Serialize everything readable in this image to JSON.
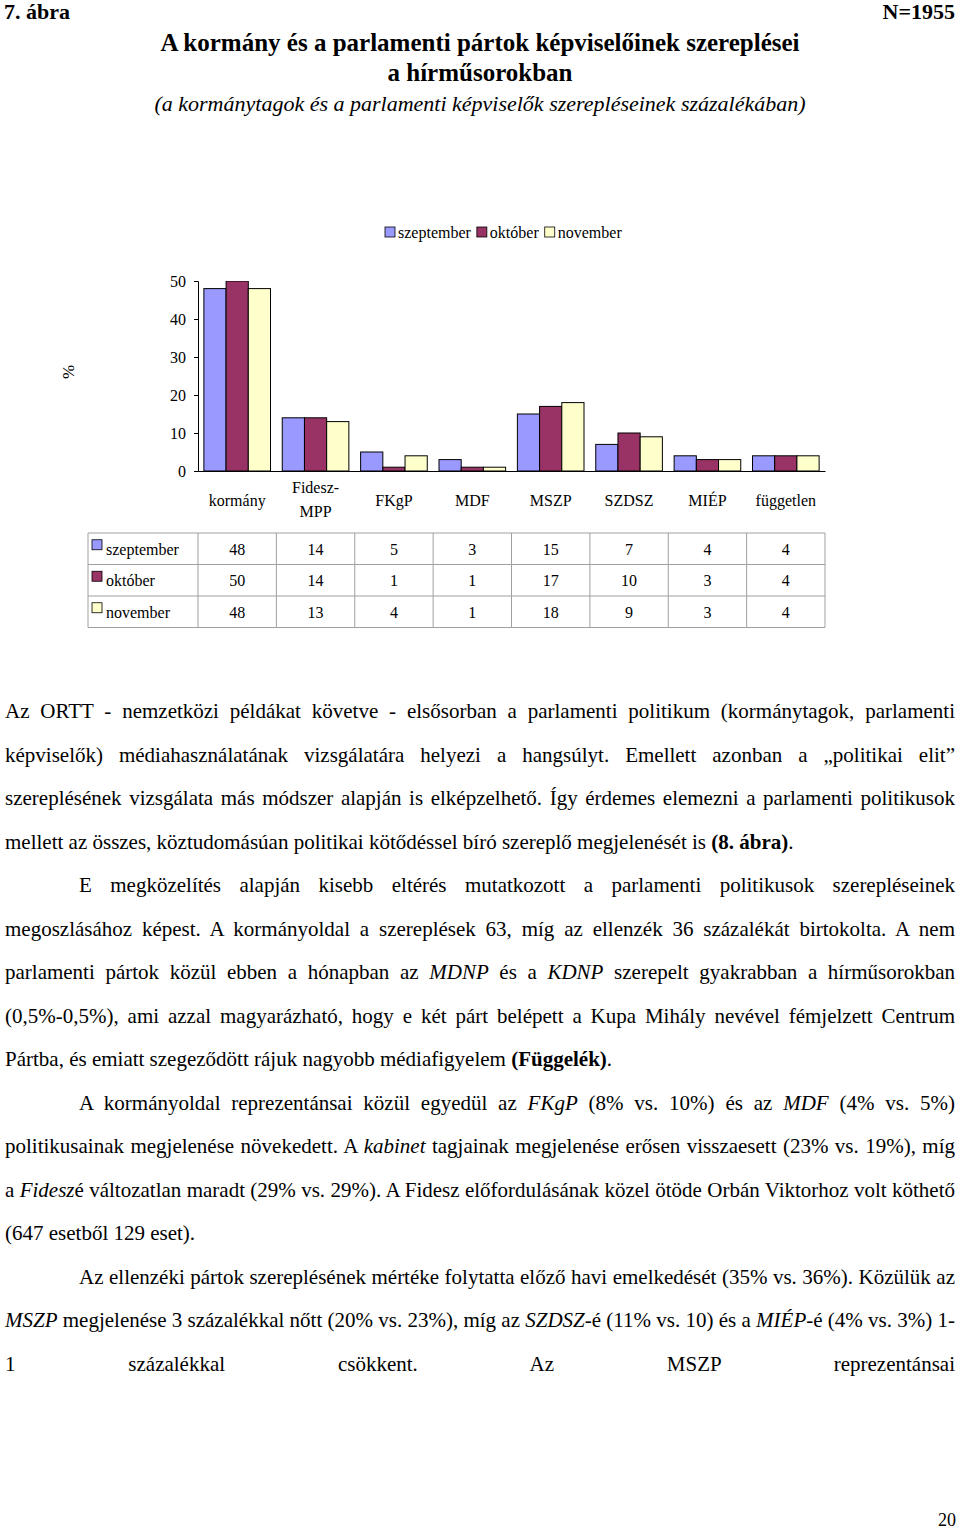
{
  "document": {
    "figure_label": "7. ábra",
    "sample_size": "N=1955",
    "paragraphs": [
      [
        "Az ORTT - nemzetközi példákat követve - elsősorban a parlamenti politikum (kormánytagok, parlamenti képviselők) médiahasználatának vizsgálatára helyezi a hangsúlyt. Emellett azonban a „politikai elit” szereplésének vizsgálata más módszer alapján is elképzelhető. Így érdemes elemezni a parlamenti politikusok mellett az összes, köztudomásúan politikai kötődéssel bíró szereplő megjelenését is ",
        {
          "bold": "(8. ábra)"
        },
        "."
      ],
      [
        "E megközelítés alapján kisebb eltérés mutatkozott a parlamenti politikusok szerepléseinek megoszlásához képest. A kormányoldal a szereplések 63, míg az ellenzék 36 százalékát birtokolta. A nem parlamenti pártok közül ebben a hónapban az ",
        {
          "italic": "MDNP"
        },
        " és a ",
        {
          "italic": "KDNP"
        },
        " szerepelt gyakrabban a hírműsorokban (0,5%-0,5%), ami azzal magyarázható, hogy e két párt belépett a Kupa Mihály nevével fémjelzett Centrum Pártba, és emiatt szegeződött rájuk nagyobb médiafigyelem ",
        {
          "bold": "(Függelék)"
        },
        "."
      ],
      [
        "A kormányoldal reprezentánsai közül egyedül az ",
        {
          "italic": "FKgP"
        },
        " (8% vs. 10%) és az ",
        {
          "italic": "MDF"
        },
        " (4% vs. 5%) politikusainak megjelenése növekedett. A ",
        {
          "italic": "kabinet"
        },
        " tagjainak megjelenése erősen visszaesett (23% vs. 19%), míg a ",
        {
          "italic": "Fidesz"
        },
        "é változatlan maradt (29% vs. 29%). A Fidesz előfordulásának közel ötöde Orbán Viktorhoz volt köthető (647 esetből 129 eset)."
      ],
      [
        "Az ellenzéki pártok szereplésének mértéke folytatta előző havi emelkedését (35% vs. 36%). Közülük az ",
        {
          "italic": "MSZP"
        },
        " megjelenése 3 százalékkal nőtt (20% vs. 23%), míg az ",
        {
          "italic": "SZDSZ"
        },
        "-é (11% vs. 10) és a ",
        {
          "italic": "MIÉP"
        },
        "-é (4% vs. 3%) 1-1 százalékkal csökkent. Az MSZP reprezentánsai"
      ]
    ],
    "page_number": "20"
  },
  "chart_data": {
    "type": "bar",
    "title": "A kormány és a parlamenti pártok képviselőinek szereplései a hírműsorokban",
    "subtitle": "(a kormánytagok és a parlamenti képviselők szerepléseinek százalékában)",
    "ylabel": "%",
    "categories": [
      "kormány",
      "Fidesz-MPP",
      "FKgP",
      "MDF",
      "MSZP",
      "SZDSZ",
      "MIÉP",
      "független"
    ],
    "series": [
      {
        "name": "szeptember",
        "color": "#9999ff",
        "values": [
          48,
          14,
          5,
          3,
          15,
          7,
          4,
          4
        ]
      },
      {
        "name": "október",
        "color": "#993366",
        "values": [
          50,
          14,
          1,
          1,
          17,
          10,
          3,
          4
        ]
      },
      {
        "name": "november",
        "color": "#ffffcc",
        "values": [
          48,
          13,
          4,
          1,
          18,
          9,
          3,
          4
        ]
      }
    ],
    "ylim": [
      0,
      50
    ],
    "yticks": [
      0,
      10,
      20,
      30,
      40,
      50
    ],
    "legend": "top"
  }
}
